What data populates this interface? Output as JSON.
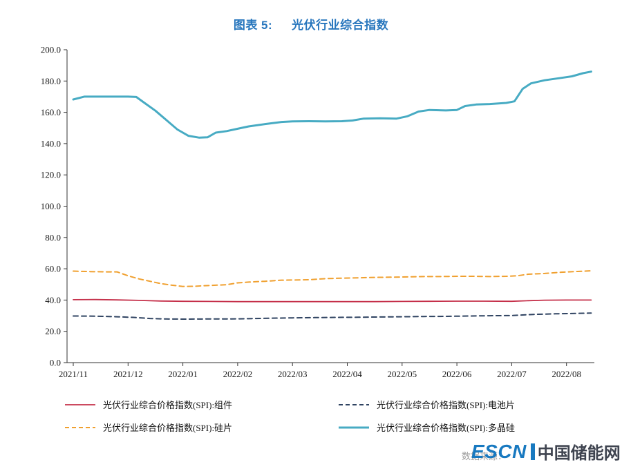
{
  "header": {
    "chart_label": "图表 5:",
    "chart_title": "光伏行业综合指数"
  },
  "footer": {
    "source_label": "数据来源：",
    "watermark_escn": "ESCN",
    "watermark_name": "中国储能网"
  },
  "colors": {
    "title_blue": "#2776BD",
    "axis": "#333333",
    "watermark_blue": "#1879C0"
  },
  "chart_data": {
    "type": "line",
    "title": "光伏行业综合指数",
    "xlabel": "",
    "ylabel": "",
    "grid": false,
    "legend_position": "bottom",
    "ylim": [
      0,
      200
    ],
    "xlim_months": [
      0,
      9.5
    ],
    "x_unit": "months since 2021/11 (tick i = month i)",
    "x_tick_labels": [
      "2021/11",
      "2021/12",
      "2022/01",
      "2022/02",
      "2022/03",
      "2022/04",
      "2022/05",
      "2022/06",
      "2022/07",
      "2022/08"
    ],
    "y_ticks": [
      "0.0",
      "20.0",
      "40.0",
      "60.0",
      "80.0",
      "100.0",
      "120.0",
      "140.0",
      "160.0",
      "180.0",
      "200.0"
    ],
    "series": [
      {
        "name": "光伏行业综合价格指数(SPI):组件",
        "key": "module",
        "color": "#C5304A",
        "style": "solid",
        "width": 1.8,
        "points": [
          [
            0,
            40.2
          ],
          [
            0.4,
            40.3
          ],
          [
            0.8,
            40.1
          ],
          [
            1.2,
            39.8
          ],
          [
            1.6,
            39.4
          ],
          [
            2.0,
            39.2
          ],
          [
            2.5,
            39.1
          ],
          [
            3.0,
            39.0
          ],
          [
            3.5,
            39.0
          ],
          [
            4.0,
            39.0
          ],
          [
            4.5,
            39.0
          ],
          [
            5.0,
            39.0
          ],
          [
            5.5,
            39.0
          ],
          [
            6.0,
            39.1
          ],
          [
            6.5,
            39.2
          ],
          [
            7.0,
            39.3
          ],
          [
            7.5,
            39.3
          ],
          [
            8.0,
            39.2
          ],
          [
            8.3,
            39.6
          ],
          [
            8.6,
            39.9
          ],
          [
            9.0,
            40.0
          ],
          [
            9.45,
            40.0
          ]
        ]
      },
      {
        "name": "光伏行业综合价格指数(SPI):电池片",
        "key": "cell",
        "color": "#2F4361",
        "style": "dashed",
        "width": 2,
        "points": [
          [
            0,
            29.8
          ],
          [
            0.4,
            29.7
          ],
          [
            0.8,
            29.3
          ],
          [
            1.1,
            28.9
          ],
          [
            1.4,
            28.2
          ],
          [
            1.7,
            27.9
          ],
          [
            2.0,
            27.8
          ],
          [
            2.4,
            27.9
          ],
          [
            2.8,
            27.9
          ],
          [
            3.2,
            28.1
          ],
          [
            3.6,
            28.4
          ],
          [
            4.0,
            28.6
          ],
          [
            4.4,
            28.8
          ],
          [
            4.8,
            28.9
          ],
          [
            5.2,
            29.0
          ],
          [
            5.6,
            29.2
          ],
          [
            6.0,
            29.3
          ],
          [
            6.4,
            29.5
          ],
          [
            6.8,
            29.6
          ],
          [
            7.2,
            29.8
          ],
          [
            7.6,
            30.0
          ],
          [
            8.0,
            30.1
          ],
          [
            8.4,
            30.8
          ],
          [
            8.8,
            31.2
          ],
          [
            9.1,
            31.4
          ],
          [
            9.45,
            31.7
          ]
        ]
      },
      {
        "name": "光伏行业综合价格指数(SPI):硅片",
        "key": "wafer",
        "color": "#F0A02F",
        "style": "dashed",
        "width": 2,
        "points": [
          [
            0,
            58.5
          ],
          [
            0.3,
            58.2
          ],
          [
            0.6,
            58.0
          ],
          [
            0.8,
            58.0
          ],
          [
            1.0,
            55.5
          ],
          [
            1.2,
            53.5
          ],
          [
            1.4,
            52.0
          ],
          [
            1.6,
            50.5
          ],
          [
            1.8,
            49.5
          ],
          [
            2.0,
            48.7
          ],
          [
            2.2,
            48.8
          ],
          [
            2.4,
            49.2
          ],
          [
            2.6,
            49.5
          ],
          [
            2.8,
            49.8
          ],
          [
            3.0,
            51.0
          ],
          [
            3.2,
            51.5
          ],
          [
            3.5,
            52.0
          ],
          [
            3.8,
            52.7
          ],
          [
            4.0,
            52.8
          ],
          [
            4.3,
            53.0
          ],
          [
            4.6,
            53.7
          ],
          [
            4.9,
            54.0
          ],
          [
            5.2,
            54.2
          ],
          [
            5.5,
            54.5
          ],
          [
            5.8,
            54.6
          ],
          [
            6.1,
            54.8
          ],
          [
            6.4,
            55.0
          ],
          [
            6.7,
            55.0
          ],
          [
            7.0,
            55.2
          ],
          [
            7.3,
            55.2
          ],
          [
            7.6,
            55.0
          ],
          [
            7.9,
            55.2
          ],
          [
            8.1,
            55.5
          ],
          [
            8.3,
            56.5
          ],
          [
            8.6,
            57.0
          ],
          [
            8.9,
            57.8
          ],
          [
            9.2,
            58.3
          ],
          [
            9.45,
            58.7
          ]
        ]
      },
      {
        "name": "光伏行业综合价格指数(SPI):多晶硅",
        "key": "polysilicon",
        "color": "#47ABC3",
        "style": "solid",
        "width": 3,
        "points": [
          [
            0,
            168.2
          ],
          [
            0.2,
            170.0
          ],
          [
            0.6,
            170.0
          ],
          [
            1.0,
            170.0
          ],
          [
            1.15,
            169.8
          ],
          [
            1.3,
            166.0
          ],
          [
            1.5,
            161.0
          ],
          [
            1.7,
            155.0
          ],
          [
            1.9,
            149.0
          ],
          [
            2.1,
            145.0
          ],
          [
            2.3,
            143.8
          ],
          [
            2.45,
            144.0
          ],
          [
            2.6,
            147.0
          ],
          [
            2.8,
            148.0
          ],
          [
            3.0,
            149.5
          ],
          [
            3.2,
            151.0
          ],
          [
            3.5,
            152.5
          ],
          [
            3.8,
            153.8
          ],
          [
            4.0,
            154.2
          ],
          [
            4.3,
            154.3
          ],
          [
            4.6,
            154.2
          ],
          [
            4.9,
            154.3
          ],
          [
            5.1,
            154.8
          ],
          [
            5.3,
            156.0
          ],
          [
            5.6,
            156.2
          ],
          [
            5.9,
            156.0
          ],
          [
            6.1,
            157.5
          ],
          [
            6.3,
            160.5
          ],
          [
            6.5,
            161.5
          ],
          [
            6.8,
            161.2
          ],
          [
            7.0,
            161.5
          ],
          [
            7.15,
            164.0
          ],
          [
            7.35,
            165.0
          ],
          [
            7.6,
            165.3
          ],
          [
            7.9,
            166.0
          ],
          [
            8.05,
            167.0
          ],
          [
            8.2,
            175.0
          ],
          [
            8.35,
            178.5
          ],
          [
            8.6,
            180.5
          ],
          [
            8.9,
            182.0
          ],
          [
            9.1,
            183.0
          ],
          [
            9.3,
            185.0
          ],
          [
            9.45,
            186.0
          ]
        ]
      }
    ]
  }
}
